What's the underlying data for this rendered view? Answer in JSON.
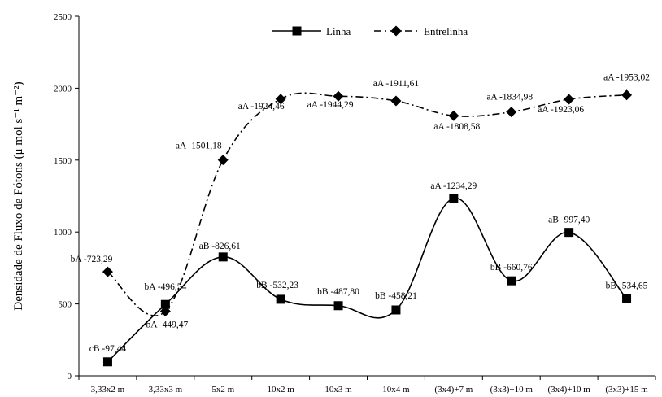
{
  "chart_data": {
    "type": "line",
    "title": "",
    "xlabel": "",
    "ylabel": "Densidade de Fluxo de Fótons (μ mol s⁻¹ m⁻²)",
    "ylim": [
      0,
      2500
    ],
    "yticks": [
      0,
      500,
      1000,
      1500,
      2000,
      2500
    ],
    "grid": false,
    "legend_position": "top-center",
    "categories": [
      "3,33x2 m",
      "3,33x3 m",
      "5x2 m",
      "10x2 m",
      "10x3 m",
      "10x4 m",
      "(3x4)+7 m",
      "(3x3)+10 m",
      "(3x4)+10 m",
      "(3x3)+15 m"
    ],
    "series": [
      {
        "name": "Linha",
        "marker": "square",
        "line_style": "solid",
        "curve": "smooth",
        "values": [
          97.44,
          496.54,
          826.61,
          532.23,
          487.8,
          458.21,
          1234.29,
          660.76,
          997.4,
          534.65
        ],
        "labels": [
          "cB -97,44",
          "bA -496,54",
          "aB -826,61",
          "bB -532,23",
          "bB -487,80",
          "bB -458,21",
          "aA -1234,29",
          "bB -660,76",
          "aB -997,40",
          "bB -534,65"
        ]
      },
      {
        "name": "Entrelinha",
        "marker": "diamond",
        "line_style": "dash-dot",
        "curve": "smooth",
        "values": [
          723.29,
          449.47,
          1501.18,
          1924.46,
          1944.29,
          1911.61,
          1808.58,
          1834.98,
          1923.06,
          1953.02
        ],
        "labels": [
          "bA -723,29",
          "bA -449,47",
          "aA -1501,18",
          "aA -1924,46",
          "aA -1944,29",
          "aA -1911,61",
          "aA -1808,58",
          "aA -1834,98",
          "aA -1923,06",
          "aA -1953,02"
        ]
      }
    ],
    "colors": {
      "line": "#000000",
      "marker": "#000000"
    }
  }
}
